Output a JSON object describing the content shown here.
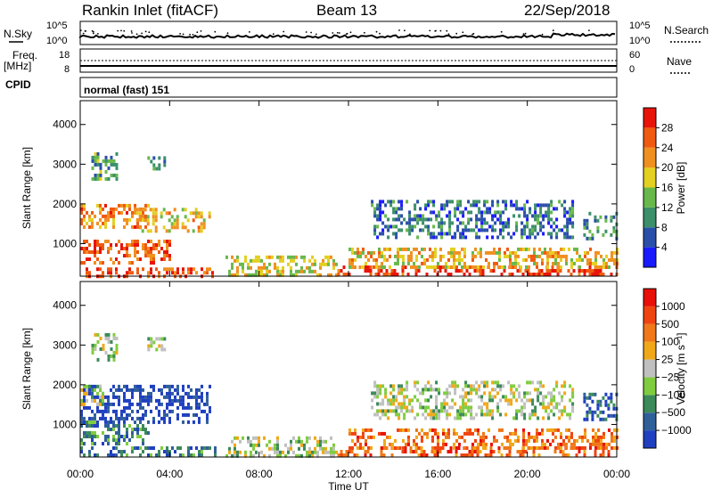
{
  "header": {
    "station": "Rankin Inlet (fitACF)",
    "beam": "Beam 13",
    "date": "22/Sep/2018"
  },
  "summary": {
    "nsky_label": "N.Sky",
    "nsearch_label": "N.Search",
    "freq_label_1": "Freq.",
    "freq_label_2": "[MHz]",
    "nave_label": "Nave",
    "cpid_label": "CPID",
    "cpid_text": "normal (fast) 151",
    "noise_ticks_left": [
      "10^5",
      "10^0"
    ],
    "noise_ticks_right": [
      "10^5",
      "10^0"
    ],
    "freq_ticks": [
      "18",
      "8"
    ],
    "nave_ticks": [
      "60",
      "0"
    ]
  },
  "colors": {
    "power": [
      "#1a1aff",
      "#2a4fa8",
      "#3c8f6a",
      "#68b84c",
      "#e3d020",
      "#f09020",
      "#f05a10",
      "#e8140a"
    ],
    "velocity": [
      "#2040c0",
      "#30609a",
      "#3c8a5a",
      "#80cc40",
      "#c0c0c0",
      "#f0a818",
      "#f07818",
      "#f04410",
      "#e81008"
    ]
  },
  "chart_data": [
    {
      "type": "heatmap",
      "name": "power",
      "ylabel": "Slant Range [km]",
      "y_ticks": [
        1000,
        2000,
        3000,
        4000
      ],
      "ylim": [
        180,
        4600
      ],
      "x_ticks": [
        "00:00",
        "04:00",
        "08:00",
        "12:00",
        "16:00",
        "20:00",
        "00:00"
      ],
      "xlim_hours": [
        0,
        24
      ],
      "colorbar_label": "Power [dB]",
      "colorbar_ticks": [
        "28",
        "24",
        "20",
        "16",
        "12",
        "8",
        "4"
      ],
      "colorbar_range": [
        0,
        32
      ],
      "regions": [
        {
          "t": [
            0.0,
            3.0
          ],
          "r": [
            1400,
            2000
          ],
          "level": 0.72
        },
        {
          "t": [
            0.0,
            4.0
          ],
          "r": [
            500,
            1100
          ],
          "level": 0.8
        },
        {
          "t": [
            2.5,
            5.8
          ],
          "r": [
            1300,
            1900
          ],
          "level": 0.6
        },
        {
          "t": [
            0.5,
            1.6
          ],
          "r": [
            2600,
            3300
          ],
          "level": 0.35
        },
        {
          "t": [
            3.0,
            3.8
          ],
          "r": [
            2900,
            3200
          ],
          "level": 0.3
        },
        {
          "t": [
            0.0,
            6.0
          ],
          "r": [
            200,
            400
          ],
          "level": 0.85
        },
        {
          "t": [
            6.5,
            11.5
          ],
          "r": [
            250,
            700
          ],
          "level": 0.55
        },
        {
          "t": [
            11.5,
            24.0
          ],
          "r": [
            220,
            450
          ],
          "level": 0.9
        },
        {
          "t": [
            12.0,
            24.0
          ],
          "r": [
            450,
            900
          ],
          "level": 0.62
        },
        {
          "t": [
            13.0,
            22.0
          ],
          "r": [
            1200,
            2100
          ],
          "level": 0.25
        },
        {
          "t": [
            22.5,
            24.0
          ],
          "r": [
            1100,
            1800
          ],
          "level": 0.3
        }
      ]
    },
    {
      "type": "heatmap",
      "name": "velocity",
      "ylabel": "Slant Range [km]",
      "y_ticks": [
        1000,
        2000,
        3000,
        4000
      ],
      "ylim": [
        180,
        4600
      ],
      "x_ticks": [
        "00:00",
        "04:00",
        "08:00",
        "12:00",
        "16:00",
        "20:00",
        "00:00"
      ],
      "xlim_hours": [
        0,
        24
      ],
      "xlabel": "Time UT",
      "colorbar_label": "Velocity [m s⁻¹]",
      "colorbar_ticks": [
        "1000",
        "500",
        "100",
        "25",
        "−25",
        "−100",
        "−500",
        "−1000"
      ],
      "colorbar_range": [
        -1200,
        1200
      ],
      "regions": [
        {
          "t": [
            0.0,
            5.8
          ],
          "r": [
            1100,
            2000
          ],
          "level": 0.05
        },
        {
          "t": [
            0.0,
            1.0
          ],
          "r": [
            1500,
            2000
          ],
          "level": 0.45
        },
        {
          "t": [
            0.0,
            3.0
          ],
          "r": [
            500,
            1100
          ],
          "level": 0.25
        },
        {
          "t": [
            0.5,
            1.6
          ],
          "r": [
            2600,
            3300
          ],
          "level": 0.45
        },
        {
          "t": [
            3.0,
            3.8
          ],
          "r": [
            2900,
            3200
          ],
          "level": 0.45
        },
        {
          "t": [
            0.0,
            6.0
          ],
          "r": [
            200,
            450
          ],
          "level": 0.2
        },
        {
          "t": [
            6.5,
            11.5
          ],
          "r": [
            250,
            700
          ],
          "level": 0.45
        },
        {
          "t": [
            11.5,
            24.0
          ],
          "r": [
            220,
            450
          ],
          "level": 0.8
        },
        {
          "t": [
            12.0,
            24.0
          ],
          "r": [
            450,
            900
          ],
          "level": 0.75
        },
        {
          "t": [
            13.0,
            22.0
          ],
          "r": [
            1200,
            2100
          ],
          "level": 0.45
        },
        {
          "t": [
            22.5,
            24.0
          ],
          "r": [
            1100,
            1800
          ],
          "level": 0.15
        }
      ]
    }
  ]
}
